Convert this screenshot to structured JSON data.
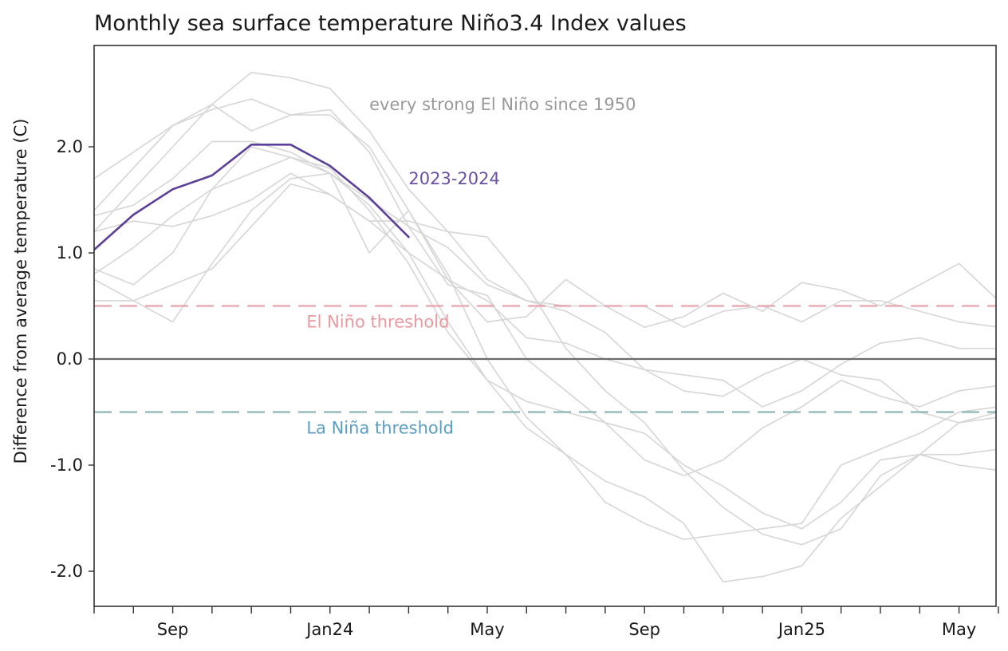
{
  "chart_data": {
    "type": "line",
    "title": "Monthly sea surface temperature Niño3.4 Index values",
    "ylabel": "Difference from average temperature (C)",
    "xlabel": "",
    "x_months": [
      "Jul 2023",
      "Aug 2023",
      "Sep 2023",
      "Oct 2023",
      "Nov 2023",
      "Dec 2023",
      "Jan 2024",
      "Feb 2024",
      "Mar 2024",
      "Apr 2024",
      "May 2024",
      "Jun 2024",
      "Jul 2024",
      "Aug 2024",
      "Sep 2024",
      "Oct 2024",
      "Nov 2024",
      "Dec 2024",
      "Jan 2025",
      "Feb 2025",
      "Mar 2025",
      "Apr 2025",
      "May 2025",
      "Jun 2025"
    ],
    "x_tick_labels": [
      {
        "month_index": 2,
        "label": "Sep"
      },
      {
        "month_index": 6,
        "label": "Jan24"
      },
      {
        "month_index": 10,
        "label": "May"
      },
      {
        "month_index": 14,
        "label": "Sep"
      },
      {
        "month_index": 18,
        "label": "Jan25"
      },
      {
        "month_index": 22,
        "label": "May"
      }
    ],
    "ylim": [
      -2.3,
      2.95
    ],
    "y_ticks": [
      {
        "value": 2.0,
        "label": "2.0"
      },
      {
        "value": 1.0,
        "label": "1.0"
      },
      {
        "value": 0.0,
        "label": "0.0"
      },
      {
        "value": -1.0,
        "label": "-1.0"
      },
      {
        "value": -2.0,
        "label": "-2.0"
      }
    ],
    "thresholds": [
      {
        "value": 0.5,
        "label": "El Niño threshold",
        "color": "#e8a3ac",
        "label_color": "#e99aa0",
        "label_month_index": 5.2
      },
      {
        "value": 0.0,
        "label": "",
        "color": "#6b6b6b",
        "label_color": "",
        "label_month_index": 0
      },
      {
        "value": -0.5,
        "label": "La Niña threshold",
        "color": "#8fb8b4",
        "label_color": "#5b9ec2",
        "label_month_index": 5.2
      }
    ],
    "annotations": [
      {
        "text": "every strong El Niño since 1950",
        "color": "#9a9a9a",
        "month_index": 7,
        "value": 2.3
      },
      {
        "text": "2023-2024",
        "color": "#6a4fa3",
        "month_index": 8,
        "value": 1.6
      }
    ],
    "series": [
      {
        "name": "2023-2024",
        "highlight": true,
        "color": "#5b3f99",
        "values": [
          1.03,
          1.36,
          1.6,
          1.73,
          2.02,
          2.02,
          1.82,
          1.52,
          1.15
        ]
      },
      {
        "name": "",
        "highlight": false,
        "color": "#d6d6d6",
        "values": [
          1.2,
          1.6,
          2.0,
          2.4,
          2.7,
          2.65,
          2.55,
          2.15,
          1.6,
          1.2,
          1.15,
          0.7,
          0.1,
          -0.3,
          -0.6,
          -1.05,
          -1.4,
          -1.65,
          -1.75,
          -1.6,
          -1.1,
          -0.9,
          -1.0,
          -1.05
        ]
      },
      {
        "name": "",
        "highlight": false,
        "color": "#d6d6d6",
        "values": [
          1.7,
          1.95,
          2.2,
          2.35,
          2.45,
          2.3,
          2.35,
          1.95,
          1.25,
          0.7,
          0.6,
          0.0,
          -0.3,
          -0.6,
          -0.7,
          -1.0,
          -1.2,
          -1.45,
          -1.6,
          -1.35,
          -0.95,
          -0.9,
          -0.9,
          -0.85
        ]
      },
      {
        "name": "",
        "highlight": false,
        "color": "#d6d6d6",
        "values": [
          1.4,
          1.8,
          2.2,
          2.4,
          2.15,
          2.3,
          2.3,
          2.0,
          1.4,
          0.8,
          0.0,
          -0.55,
          -0.9,
          -1.15,
          -1.3,
          -1.55,
          -2.1,
          -2.05,
          -1.95,
          -1.5,
          -1.2,
          -0.9,
          -0.6,
          -0.5
        ]
      },
      {
        "name": "",
        "highlight": false,
        "color": "#d6d6d6",
        "values": [
          0.85,
          0.7,
          1.0,
          1.6,
          2.0,
          1.9,
          1.8,
          1.4,
          0.9,
          0.25,
          -0.2,
          -0.65,
          -0.9,
          -1.35,
          -1.55,
          -1.7,
          -1.65,
          -1.6,
          -1.55,
          -1.0,
          -0.85,
          -0.7,
          -0.5,
          -0.45
        ]
      },
      {
        "name": "",
        "highlight": false,
        "color": "#d6d6d6",
        "values": [
          0.55,
          0.55,
          0.7,
          0.85,
          1.25,
          1.65,
          1.55,
          1.3,
          1.0,
          0.75,
          0.55,
          0.2,
          0.15,
          0.0,
          -0.1,
          -0.15,
          -0.2,
          -0.45,
          -0.3,
          -0.05,
          0.15,
          0.2,
          0.1,
          0.1
        ]
      },
      {
        "name": "",
        "highlight": false,
        "color": "#d6d6d6",
        "values": [
          1.35,
          1.45,
          1.7,
          2.05,
          2.05,
          1.95,
          1.75,
          1.45,
          1.0,
          0.35,
          -0.2,
          -0.4,
          -0.5,
          -0.6,
          -0.95,
          -1.1,
          -0.95,
          -0.65,
          -0.45,
          -0.2,
          -0.35,
          -0.45,
          -0.3,
          -0.25
        ]
      },
      {
        "name": "",
        "highlight": false,
        "color": "#d6d6d6",
        "values": [
          0.8,
          1.05,
          1.35,
          1.6,
          1.75,
          1.9,
          1.75,
          1.5,
          1.25,
          1.05,
          0.7,
          0.55,
          0.45,
          0.25,
          -0.1,
          -0.3,
          -0.35,
          -0.15,
          0.0,
          -0.15,
          -0.2,
          -0.5,
          -0.6,
          -0.55
        ]
      },
      {
        "name": "",
        "highlight": false,
        "color": "#d6d6d6",
        "values": [
          1.2,
          1.3,
          1.25,
          1.35,
          1.5,
          1.75,
          1.55,
          1.3,
          1.3,
          1.2,
          0.75,
          0.55,
          0.5,
          0.5,
          0.3,
          0.4,
          0.62,
          0.45,
          0.72,
          0.65,
          0.5,
          0.7,
          0.9,
          0.55
        ]
      },
      {
        "name": "",
        "highlight": false,
        "color": "#d6d6d6",
        "values": [
          0.75,
          0.55,
          0.35,
          0.9,
          1.4,
          1.7,
          1.75,
          1.0,
          1.4,
          0.75,
          0.35,
          0.4,
          0.75,
          0.5,
          0.5,
          0.3,
          0.45,
          0.5,
          0.35,
          0.55,
          0.55,
          0.45,
          0.35,
          0.3
        ]
      }
    ]
  }
}
